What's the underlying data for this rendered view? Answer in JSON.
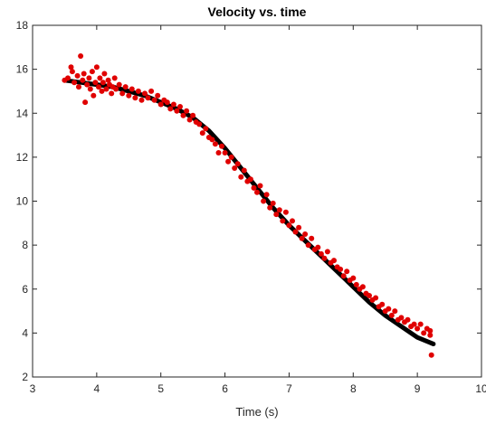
{
  "chart_data": {
    "type": "scatter",
    "title": "Velocity vs. time",
    "xlabel": "Time (s)",
    "ylabel": "",
    "xlim": [
      3,
      10
    ],
    "ylim": [
      2,
      18
    ],
    "xticks": [
      "3",
      "4",
      "5",
      "6",
      "7",
      "8",
      "9",
      "10"
    ],
    "yticks": [
      "2",
      "4",
      "6",
      "8",
      "10",
      "12",
      "14",
      "16",
      "18"
    ],
    "grid": false,
    "legend": "none",
    "colors": {
      "fit": "#000000",
      "measured": "#e00000",
      "axes": "#262626"
    },
    "series": [
      {
        "role": "fit",
        "x": [
          3.5,
          3.75,
          4.0,
          4.25,
          4.5,
          4.75,
          5.0,
          5.25,
          5.5,
          5.75,
          6.0,
          6.25,
          6.5,
          6.75,
          7.0,
          7.25,
          7.5,
          7.75,
          8.0,
          8.25,
          8.5,
          8.75,
          9.0,
          9.25
        ],
        "y": [
          15.5,
          15.4,
          15.3,
          15.2,
          15.0,
          14.8,
          14.5,
          14.2,
          13.8,
          13.2,
          12.4,
          11.5,
          10.6,
          9.7,
          8.9,
          8.2,
          7.5,
          6.8,
          6.1,
          5.4,
          4.8,
          4.3,
          3.8,
          3.5
        ]
      },
      {
        "role": "measured",
        "x": [
          3.5,
          3.55,
          3.6,
          3.62,
          3.65,
          3.7,
          3.72,
          3.75,
          3.78,
          3.8,
          3.82,
          3.85,
          3.88,
          3.9,
          3.93,
          3.95,
          3.98,
          4.0,
          4.03,
          4.05,
          4.08,
          4.1,
          4.12,
          4.15,
          4.18,
          4.2,
          4.23,
          4.25,
          4.28,
          4.3,
          4.35,
          4.4,
          4.45,
          4.5,
          4.55,
          4.6,
          4.65,
          4.7,
          4.75,
          4.8,
          4.85,
          4.9,
          4.95,
          5.0,
          5.05,
          5.1,
          5.15,
          5.2,
          5.25,
          5.3,
          5.35,
          5.4,
          5.45,
          5.5,
          5.55,
          5.6,
          5.65,
          5.7,
          5.75,
          5.8,
          5.85,
          5.9,
          5.95,
          6.0,
          6.05,
          6.1,
          6.15,
          6.2,
          6.25,
          6.3,
          6.35,
          6.4,
          6.45,
          6.5,
          6.55,
          6.6,
          6.65,
          6.7,
          6.75,
          6.8,
          6.85,
          6.9,
          6.95,
          7.0,
          7.05,
          7.1,
          7.15,
          7.2,
          7.25,
          7.3,
          7.35,
          7.4,
          7.45,
          7.5,
          7.55,
          7.6,
          7.65,
          7.7,
          7.75,
          7.8,
          7.85,
          7.9,
          7.95,
          8.0,
          8.05,
          8.1,
          8.15,
          8.2,
          8.25,
          8.3,
          8.35,
          8.4,
          8.45,
          8.5,
          8.55,
          8.6,
          8.65,
          8.7,
          8.75,
          8.8,
          8.85,
          8.9,
          8.95,
          9.0,
          9.05,
          9.1,
          9.15,
          9.2,
          9.2,
          9.22
        ],
        "y": [
          15.5,
          15.6,
          16.1,
          15.9,
          15.4,
          15.7,
          15.2,
          16.6,
          15.5,
          15.8,
          14.5,
          15.3,
          15.6,
          15.1,
          15.9,
          14.8,
          15.4,
          16.1,
          15.2,
          15.6,
          15.0,
          15.4,
          15.8,
          15.1,
          15.5,
          15.3,
          14.9,
          15.2,
          15.6,
          15.1,
          15.3,
          14.9,
          15.2,
          14.8,
          15.1,
          14.7,
          15.0,
          14.6,
          14.9,
          14.7,
          15.0,
          14.6,
          14.8,
          14.4,
          14.6,
          14.5,
          14.2,
          14.4,
          14.1,
          14.3,
          13.9,
          14.1,
          13.7,
          13.9,
          13.6,
          13.5,
          13.1,
          13.3,
          12.9,
          12.8,
          12.6,
          12.2,
          12.5,
          12.2,
          11.8,
          12.0,
          11.5,
          11.7,
          11.1,
          11.4,
          10.9,
          11.0,
          10.6,
          10.4,
          10.7,
          10.0,
          10.3,
          9.7,
          9.9,
          9.4,
          9.6,
          9.1,
          9.5,
          8.9,
          9.1,
          8.6,
          8.8,
          8.3,
          8.5,
          8.0,
          8.3,
          7.8,
          7.9,
          7.6,
          7.4,
          7.7,
          7.2,
          7.3,
          7.0,
          6.9,
          6.6,
          6.8,
          6.4,
          6.5,
          6.2,
          6.0,
          6.1,
          5.8,
          5.7,
          5.5,
          5.6,
          5.2,
          5.3,
          5.0,
          5.1,
          4.8,
          5.0,
          4.6,
          4.7,
          4.5,
          4.6,
          4.3,
          4.4,
          4.2,
          4.4,
          4.0,
          4.2,
          3.9,
          4.1,
          3.0
        ]
      }
    ]
  }
}
